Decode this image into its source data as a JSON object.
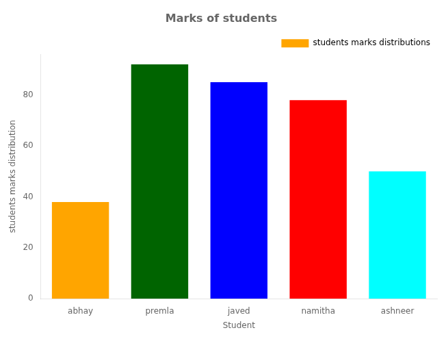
{
  "chart_data": {
    "type": "bar",
    "title": "Marks of students",
    "xlabel": "Student",
    "ylabel": "students marks distribution",
    "categories": [
      "abhay",
      "premla",
      "javed",
      "namitha",
      "ashneer"
    ],
    "series": [
      {
        "name": "students marks distributions",
        "color": "#FFA500",
        "colors": [
          "#FFA500",
          "#006400",
          "#0000FF",
          "#FF0000",
          "#00FFFF"
        ],
        "values": [
          38,
          92,
          85,
          78,
          50
        ]
      }
    ],
    "ylim": [
      0,
      96
    ],
    "yticks": [
      0,
      20,
      40,
      60,
      80
    ],
    "grid": false,
    "legend": "upper right"
  }
}
